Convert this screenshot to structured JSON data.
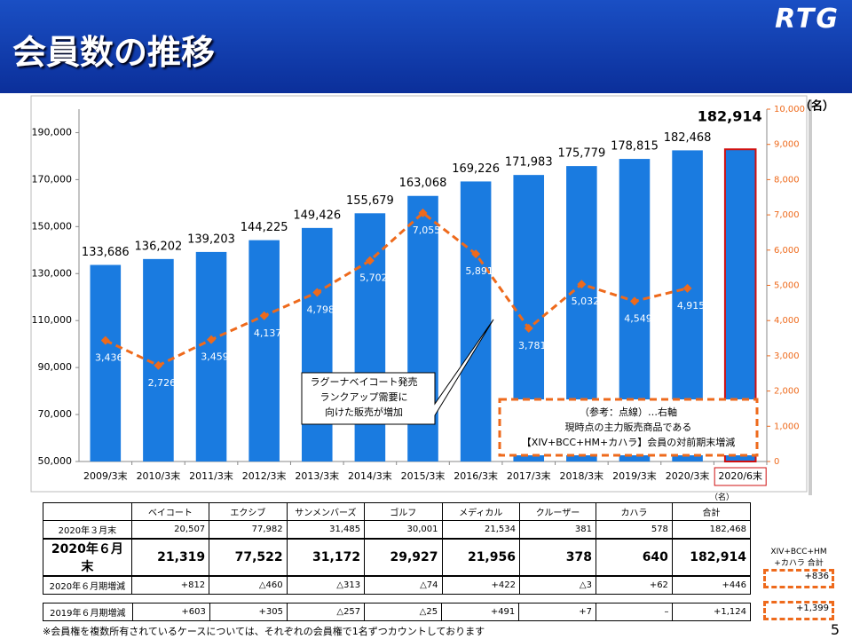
{
  "header": {
    "title": "会員数の推移",
    "logo": "RTG"
  },
  "chart_data": {
    "type": "bar",
    "unit_right": "（名）",
    "categories": [
      "2009/3末",
      "2010/3末",
      "2011/3末",
      "2012/3末",
      "2013/3末",
      "2014/3末",
      "2015/3末",
      "2016/3末",
      "2017/3末",
      "2018/3末",
      "2019/3末",
      "2020/3末",
      "2020/6末"
    ],
    "series": [
      {
        "type": "bar",
        "color": "#1a7be0",
        "values": [
          133686,
          136202,
          139203,
          144225,
          149426,
          155679,
          163068,
          169226,
          171983,
          175779,
          178815,
          182468,
          182914
        ],
        "value_labels": [
          "133,686",
          "136,202",
          "139,203",
          "144,225",
          "149,426",
          "155,679",
          "163,068",
          "169,226",
          "171,983",
          "175,779",
          "178,815",
          "182,468",
          "182,914"
        ]
      },
      {
        "type": "line",
        "axis": "y2",
        "dashed": true,
        "color": "#ee6a1c",
        "values": [
          3436,
          2726,
          3459,
          4137,
          4798,
          5702,
          7055,
          5891,
          3781,
          5032,
          4549,
          4915,
          null
        ],
        "value_labels": [
          "3,436",
          "2,726",
          "3,459",
          "4,137",
          "4,798",
          "5,702",
          "7,055",
          "5,891",
          "3,781",
          "5,032",
          "4,549",
          "4,915",
          null
        ]
      }
    ],
    "ylim": [
      50000,
      200000
    ],
    "yticks": [
      {
        "value": 50000,
        "label": "50,000"
      },
      {
        "value": 70000,
        "label": "70,000"
      },
      {
        "value": 90000,
        "label": "90,000"
      },
      {
        "value": 110000,
        "label": "110,000"
      },
      {
        "value": 130000,
        "label": "130,000"
      },
      {
        "value": 150000,
        "label": "150,000"
      },
      {
        "value": 170000,
        "label": "170,000"
      },
      {
        "value": 190000,
        "label": "190,000"
      }
    ],
    "y2lim": [
      0,
      10000
    ],
    "y2ticks": [
      0,
      {
        "value": 1000,
        "label": "1,000"
      },
      {
        "value": 2000,
        "label": "2,000"
      },
      {
        "value": 3000,
        "label": "3,000"
      },
      {
        "value": 4000,
        "label": "4,000"
      },
      {
        "value": 5000,
        "label": "5,000"
      },
      {
        "value": 6000,
        "label": "6,000"
      },
      {
        "value": 7000,
        "label": "7,000"
      },
      {
        "value": 8000,
        "label": "8,000"
      },
      {
        "value": 9000,
        "label": "9,000"
      },
      {
        "value": 10000,
        "label": "10,000"
      }
    ],
    "grid": false,
    "annotations": [
      [
        "ラグーナベイコート発売",
        "ランクアップ需要に",
        "向けた販売が増加"
      ],
      [
        "（参考：点線）…右軸",
        "現時点の主力販売商品である",
        "【XIV+BCC+HM+カハラ】会員の対前期末増減"
      ]
    ]
  },
  "table": {
    "unit": "（名）",
    "columns": [
      "ベイコート",
      "エクシブ",
      "サンメンバーズ",
      "ゴルフ",
      "メディカル",
      "クルーザー",
      "カハラ",
      "合計"
    ],
    "rows": [
      {
        "label": "2020年３月末",
        "values": [
          "20,507",
          "77,982",
          "31,485",
          "30,001",
          "21,534",
          "381",
          "578",
          "182,468"
        ]
      },
      {
        "label": "2020年６月末",
        "values": [
          "21,319",
          "77,522",
          "31,172",
          "29,927",
          "21,956",
          "378",
          "640",
          "182,914"
        ]
      },
      {
        "label": "2020年６月期増減",
        "values": [
          "+812",
          "△460",
          "△313",
          "△74",
          "+422",
          "△3",
          "+62",
          "+446"
        ]
      },
      {
        "label": "2019年６月期増減",
        "values": [
          "+603",
          "+305",
          "△257",
          "△25",
          "+491",
          "+7",
          "–",
          "+1,124"
        ]
      }
    ],
    "side_header": [
      "XIV+BCC+HM",
      "+カハラ 合計"
    ],
    "side_values": [
      "+836",
      "+1,399"
    ]
  },
  "footnote": "※会員権を複数所有されているケースについては、それぞれの会員権で1名ずつカウントしております",
  "page_number": "5"
}
